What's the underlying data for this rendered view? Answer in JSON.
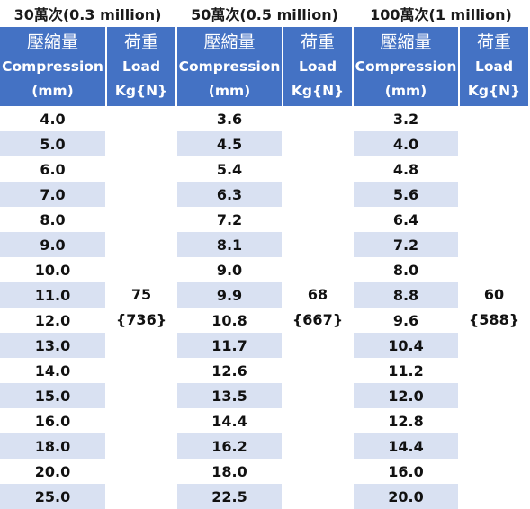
{
  "groups": [
    {
      "title": "30萬次(0.3 million)",
      "compression_header": {
        "zh": "壓縮量",
        "en": "Compression",
        "unit": "(mm)"
      },
      "load_header": {
        "zh": "荷重",
        "en": "Load",
        "unit": "Kg{N}"
      },
      "load_value": "75",
      "load_newton": "{736}",
      "compressions": [
        "4.0",
        "5.0",
        "6.0",
        "7.0",
        "8.0",
        "9.0",
        "10.0",
        "11.0",
        "12.0",
        "13.0",
        "14.0",
        "15.0",
        "16.0",
        "18.0",
        "20.0",
        "25.0"
      ]
    },
    {
      "title": "50萬次(0.5 million)",
      "compression_header": {
        "zh": "壓縮量",
        "en": "Compression",
        "unit": "(mm)"
      },
      "load_header": {
        "zh": "荷重",
        "en": "Load",
        "unit": "Kg{N}"
      },
      "load_value": "68",
      "load_newton": "{667}",
      "compressions": [
        "3.6",
        "4.5",
        "5.4",
        "6.3",
        "7.2",
        "8.1",
        "9.0",
        "9.9",
        "10.8",
        "11.7",
        "12.6",
        "13.5",
        "14.4",
        "16.2",
        "18.0",
        "22.5"
      ]
    },
    {
      "title": "100萬次(1 million)",
      "compression_header": {
        "zh": "壓縮量",
        "en": "Compression",
        "unit": "(mm)"
      },
      "load_header": {
        "zh": "荷重",
        "en": "Load",
        "unit": "Kg{N}"
      },
      "load_value": "60",
      "load_newton": "{588}",
      "compressions": [
        "3.2",
        "4.0",
        "4.8",
        "5.6",
        "6.4",
        "7.2",
        "8.0",
        "8.8",
        "9.6",
        "10.4",
        "11.2",
        "12.0",
        "12.8",
        "14.4",
        "16.0",
        "20.0"
      ]
    }
  ],
  "colors": {
    "header_bg": "#4472c4",
    "band_bg": "#d9e1f2",
    "header_text": "#ffffff"
  }
}
